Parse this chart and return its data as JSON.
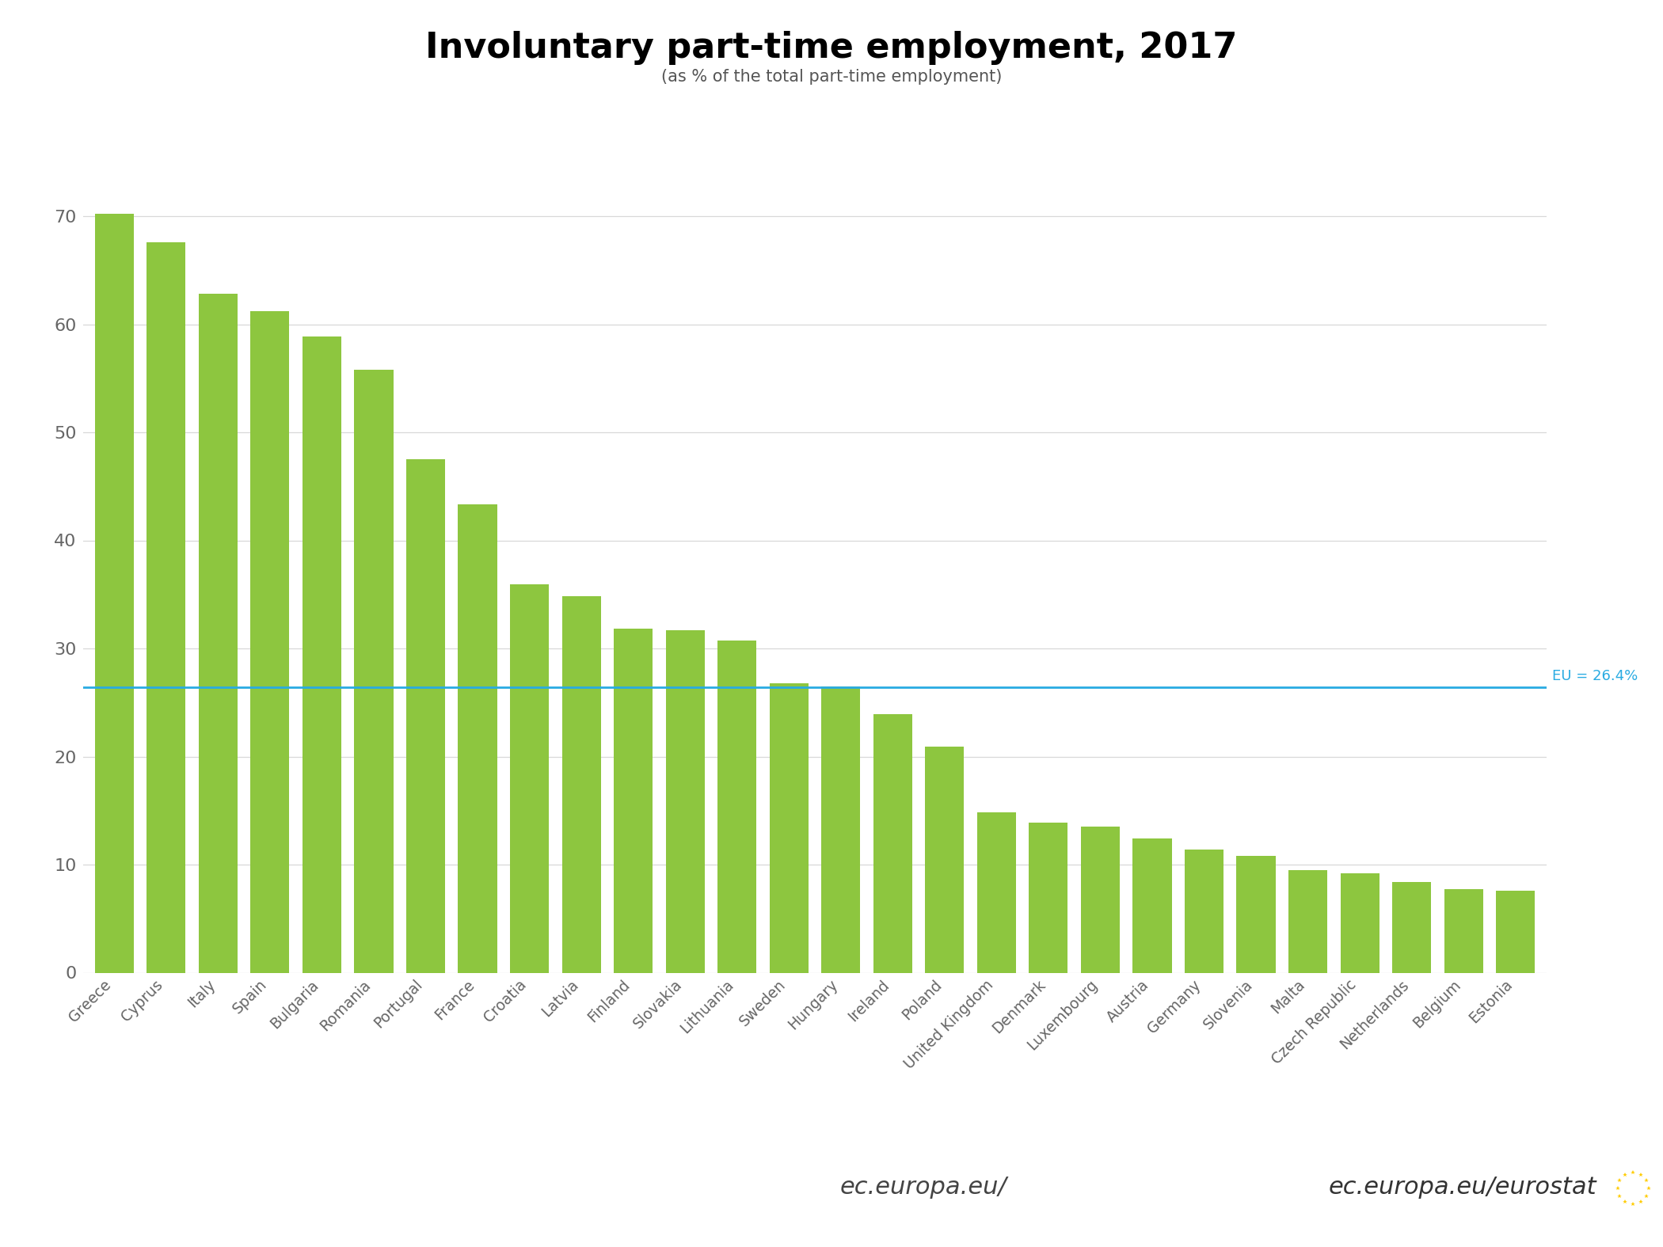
{
  "title": "Involuntary part-time employment, 2017",
  "subtitle": "(as % of the total part-time employment)",
  "categories": [
    "Greece",
    "Cyprus",
    "Italy",
    "Spain",
    "Bulgaria",
    "Romania",
    "Portugal",
    "France",
    "Croatia",
    "Latvia",
    "Finland",
    "Slovakia",
    "Lithuania",
    "Sweden",
    "Hungary",
    "Ireland",
    "Poland",
    "United Kingdom",
    "Denmark",
    "Luxembourg",
    "Austria",
    "Germany",
    "Slovenia",
    "Malta",
    "Czech Republic",
    "Netherlands",
    "Belgium",
    "Estonia"
  ],
  "values": [
    70.2,
    67.6,
    62.8,
    61.2,
    58.9,
    55.8,
    47.5,
    43.3,
    35.9,
    34.8,
    31.8,
    31.7,
    30.7,
    26.8,
    26.5,
    23.9,
    20.9,
    14.8,
    13.9,
    13.5,
    12.4,
    11.4,
    10.8,
    9.5,
    9.2,
    8.4,
    7.7,
    7.6
  ],
  "bar_color": "#8DC63F",
  "eu_line": 26.4,
  "eu_label": "EU = 26.4%",
  "ylim": [
    0,
    75
  ],
  "yticks": [
    0,
    10,
    20,
    30,
    40,
    50,
    60,
    70
  ],
  "grid_color": "#d8d8d8",
  "background_color": "#ffffff",
  "title_fontsize": 32,
  "subtitle_fontsize": 15,
  "tick_label_color": "#666666",
  "eu_line_color": "#29ABE2",
  "eu_label_color": "#29ABE2",
  "watermark_normal": "ec.europa.eu/",
  "watermark_bold": "eurostat",
  "flag_color": "#003399",
  "star_color": "#FFCC00"
}
